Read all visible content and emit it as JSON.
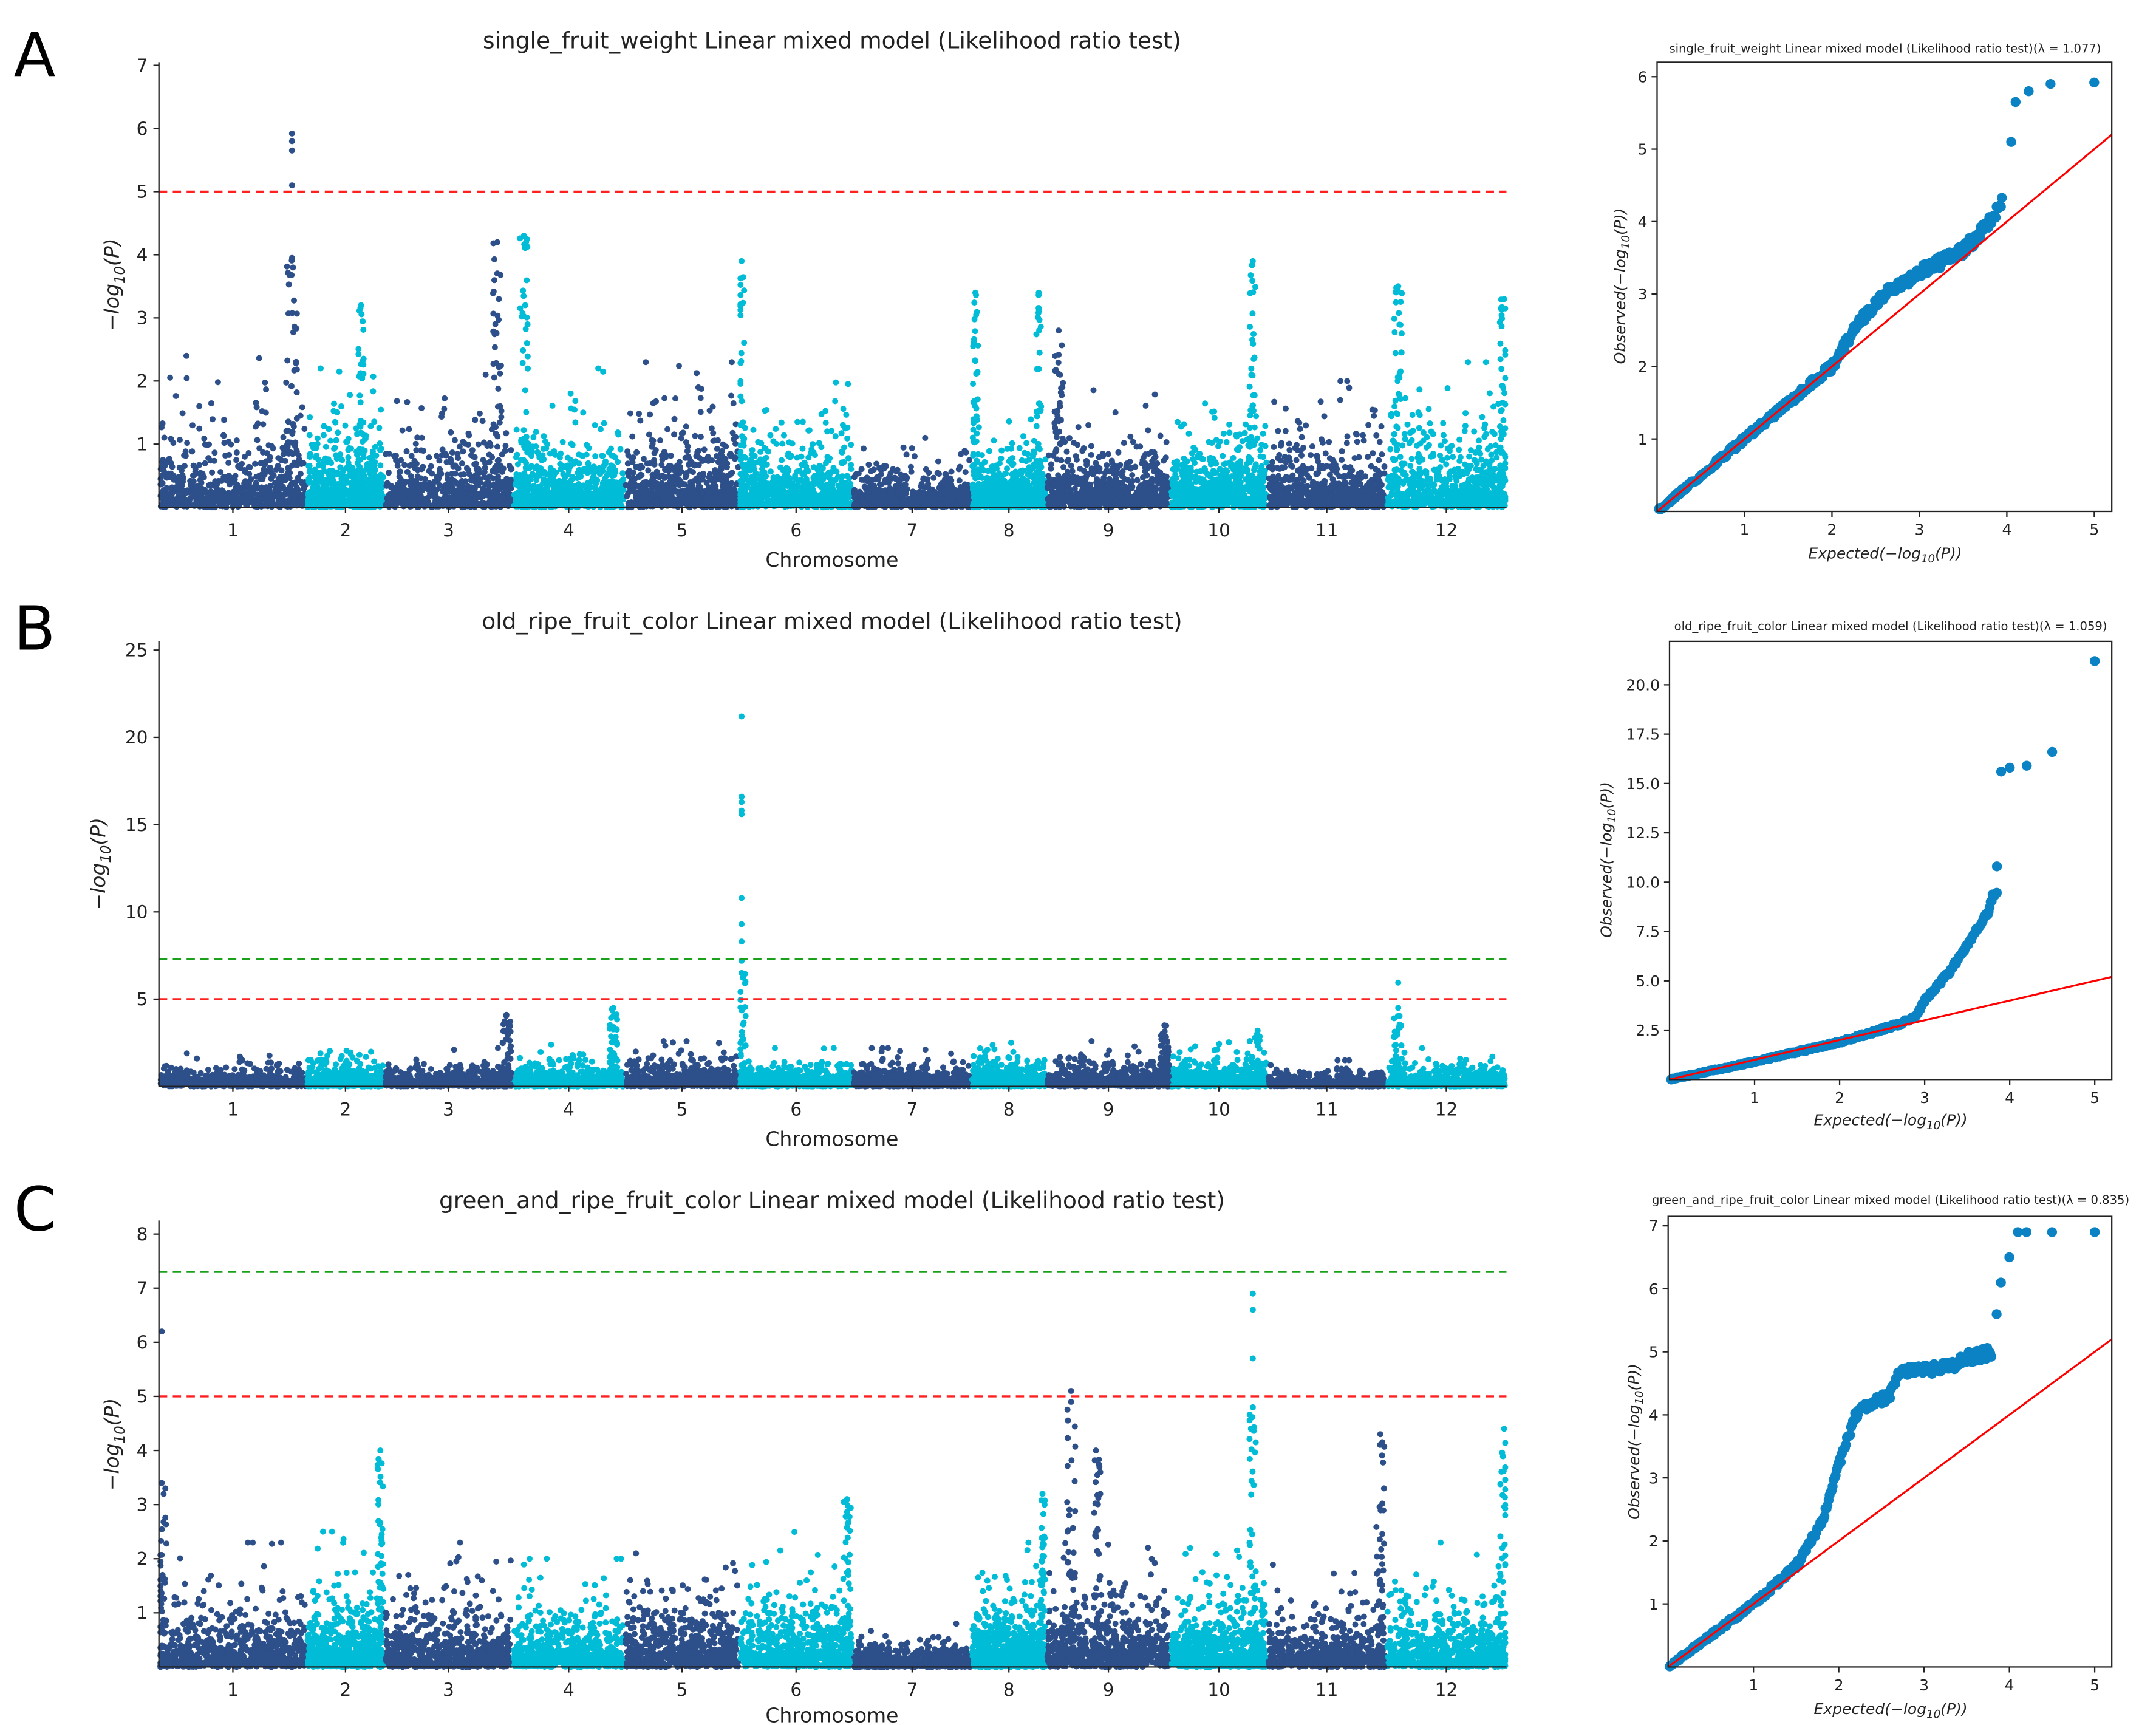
{
  "figure": {
    "panel_letters": [
      "A",
      "B",
      "C"
    ]
  },
  "colors": {
    "chrom_dark": "#2d4f8a",
    "chrom_light": "#00bcd6",
    "qq_point": "#0a82c4",
    "qq_line": "#ff0000",
    "threshold_suggestive": "#ff2020",
    "threshold_genomewide": "#1aa01a"
  },
  "chart_data": [
    {
      "type": "scatter",
      "kind": "manhattan",
      "title": "single_fruit_weight Linear mixed model (Likelihood ratio test)",
      "xlabel": "Chromosome",
      "ylabel": {
        "prefix": "−log",
        "sub": "10",
        "suffix": "(P)"
      },
      "ylim": [
        0,
        7.05
      ],
      "yticks": [
        1,
        2,
        3,
        4,
        5,
        6,
        7
      ],
      "xticklabels": [
        "1",
        "2",
        "3",
        "4",
        "5",
        "6",
        "7",
        "8",
        "9",
        "10",
        "11",
        "12"
      ],
      "thresholds": [
        {
          "value": 5,
          "style": "red-dashed"
        }
      ],
      "background_max": [
        2.4,
        2.2,
        2.1,
        2.2,
        2.3,
        2.3,
        1.1,
        1.5,
        1.9,
        2.2,
        2.0,
        2.3
      ],
      "peaks": [
        {
          "chr": 1,
          "pos": 0.9,
          "value": 3.95,
          "top_hits": [
            5.1,
            5.65,
            5.8,
            5.92
          ]
        },
        {
          "chr": 2,
          "pos": 0.7,
          "value": 3.2
        },
        {
          "chr": 3,
          "pos": 0.88,
          "value": 4.2
        },
        {
          "chr": 4,
          "pos": 0.1,
          "value": 4.3
        },
        {
          "chr": 6,
          "pos": 0.02,
          "value": 3.9
        },
        {
          "chr": 8,
          "pos": 0.05,
          "value": 3.4
        },
        {
          "chr": 8,
          "pos": 0.9,
          "value": 3.4
        },
        {
          "chr": 9,
          "pos": 0.1,
          "value": 2.8
        },
        {
          "chr": 10,
          "pos": 0.85,
          "value": 3.9
        },
        {
          "chr": 12,
          "pos": 0.1,
          "value": 3.5
        },
        {
          "chr": 12,
          "pos": 0.98,
          "value": 3.3
        }
      ]
    },
    {
      "type": "scatter",
      "kind": "manhattan",
      "title": "old_ripe_fruit_color Linear mixed model (Likelihood ratio test)",
      "xlabel": "Chromosome",
      "ylabel": {
        "prefix": "−log",
        "sub": "10",
        "suffix": "(P)"
      },
      "ylim": [
        0,
        25.5
      ],
      "yticks": [
        5,
        10,
        15,
        20,
        25
      ],
      "xticklabels": [
        "1",
        "2",
        "3",
        "4",
        "5",
        "6",
        "7",
        "8",
        "9",
        "10",
        "11",
        "12"
      ],
      "thresholds": [
        {
          "value": 5,
          "style": "red-dashed"
        },
        {
          "value": 7.3,
          "style": "green-dashed"
        }
      ],
      "background_max": [
        2.0,
        2.5,
        2.2,
        2.4,
        2.6,
        2.2,
        2.2,
        2.5,
        2.6,
        2.6,
        1.5,
        2.2
      ],
      "peaks": [
        {
          "chr": 6,
          "pos": 0.02,
          "value": 6.5,
          "top_hits": [
            7.2,
            8.3,
            9.3,
            10.8,
            15.6,
            15.8,
            16.3,
            16.6,
            21.2
          ]
        },
        {
          "chr": 12,
          "pos": 0.1,
          "value": 4.5,
          "top_hits": [
            5.95
          ]
        },
        {
          "chr": 4,
          "pos": 0.9,
          "value": 4.5
        },
        {
          "chr": 3,
          "pos": 0.95,
          "value": 4.1
        },
        {
          "chr": 9,
          "pos": 0.95,
          "value": 3.5
        },
        {
          "chr": 10,
          "pos": 0.9,
          "value": 3.2
        }
      ]
    },
    {
      "type": "scatter",
      "kind": "manhattan",
      "title": "green_and_ripe_fruit_color Linear mixed model (Likelihood ratio test)",
      "xlabel": "Chromosome",
      "ylabel": {
        "prefix": "−log",
        "sub": "10",
        "suffix": "(P)"
      },
      "ylim": [
        0,
        8.25
      ],
      "yticks": [
        1,
        2,
        3,
        4,
        5,
        6,
        7,
        8
      ],
      "xticklabels": [
        "1",
        "2",
        "3",
        "4",
        "5",
        "6",
        "7",
        "8",
        "9",
        "10",
        "11",
        "12"
      ],
      "thresholds": [
        {
          "value": 5,
          "style": "red-dashed"
        },
        {
          "value": 7.3,
          "style": "green-dashed"
        }
      ],
      "background_max": [
        2.3,
        2.5,
        2.3,
        2.0,
        2.4,
        2.5,
        0.8,
        2.3,
        2.5,
        2.4,
        1.9,
        2.3
      ],
      "peaks": [
        {
          "chr": 1,
          "pos": 0.02,
          "value": 3.4,
          "top_hits": [
            6.2
          ]
        },
        {
          "chr": 2,
          "pos": 0.95,
          "value": 4.0
        },
        {
          "chr": 6,
          "pos": 0.95,
          "value": 3.1
        },
        {
          "chr": 8,
          "pos": 0.95,
          "value": 3.2
        },
        {
          "chr": 9,
          "pos": 0.2,
          "value": 4.9,
          "top_hits": [
            5.1
          ]
        },
        {
          "chr": 9,
          "pos": 0.4,
          "value": 4.0
        },
        {
          "chr": 10,
          "pos": 0.85,
          "value": 4.8,
          "top_hits": [
            5.7,
            6.6,
            6.9
          ]
        },
        {
          "chr": 11,
          "pos": 0.95,
          "value": 4.3
        },
        {
          "chr": 12,
          "pos": 0.98,
          "value": 4.4
        }
      ]
    },
    {
      "type": "scatter",
      "kind": "qq",
      "title": "single_fruit_weight Linear mixed model (Likelihood ratio test)(λ = 1.077)",
      "lambda": 1.077,
      "xlabel": {
        "prefix": "Expected(−log",
        "sub": "10",
        "suffix": "(P))"
      },
      "ylabel": {
        "prefix": "Observed(−log",
        "sub": "10",
        "suffix": "(P))"
      },
      "xlim": [
        0,
        5.2
      ],
      "ylim": [
        0,
        6.2
      ],
      "xticks": [
        "1",
        "2",
        "3",
        "4",
        "5"
      ],
      "yticks": [
        "1",
        "2",
        "3",
        "4",
        "5",
        "6"
      ],
      "curve": [
        [
          0,
          0
        ],
        [
          1,
          1
        ],
        [
          2,
          2
        ],
        [
          2.3,
          2.6
        ],
        [
          2.6,
          3.0
        ],
        [
          3,
          3.3
        ],
        [
          3.5,
          3.6
        ],
        [
          3.75,
          3.9
        ],
        [
          3.9,
          4.2
        ],
        [
          3.95,
          4.3
        ]
      ],
      "top_points": [
        [
          4.05,
          5.1
        ],
        [
          4.1,
          5.65
        ],
        [
          4.25,
          5.8
        ],
        [
          4.5,
          5.9
        ],
        [
          5.0,
          5.92
        ]
      ]
    },
    {
      "type": "scatter",
      "kind": "qq",
      "title": "old_ripe_fruit_color Linear mixed model (Likelihood ratio test)(λ = 1.059)",
      "lambda": 1.059,
      "xlabel": {
        "prefix": "Expected(−log",
        "sub": "10",
        "suffix": "(P))"
      },
      "ylabel": {
        "prefix": "Observed(−log",
        "sub": "10",
        "suffix": "(P))"
      },
      "xlim": [
        0,
        5.2
      ],
      "ylim": [
        0,
        22.2
      ],
      "xticks": [
        "1",
        "2",
        "3",
        "4",
        "5"
      ],
      "yticks": [
        "2.5",
        "5.0",
        "7.5",
        "10.0",
        "12.5",
        "15.0",
        "17.5",
        "20.0"
      ],
      "curve": [
        [
          0,
          0
        ],
        [
          1,
          0.9
        ],
        [
          2,
          1.9
        ],
        [
          2.7,
          2.8
        ],
        [
          2.9,
          3.2
        ],
        [
          3.0,
          4.0
        ],
        [
          3.3,
          5.5
        ],
        [
          3.6,
          7.5
        ],
        [
          3.75,
          8.5
        ],
        [
          3.8,
          9.3
        ],
        [
          3.85,
          9.4
        ]
      ],
      "top_points": [
        [
          3.85,
          10.8
        ],
        [
          3.9,
          15.6
        ],
        [
          4.0,
          15.8
        ],
        [
          4.2,
          15.9
        ],
        [
          4.5,
          16.6
        ],
        [
          5.0,
          21.2
        ]
      ]
    },
    {
      "type": "scatter",
      "kind": "qq",
      "title": "green_and_ripe_fruit_color Linear mixed model (Likelihood ratio test)(λ = 0.835)",
      "lambda": 0.835,
      "xlabel": {
        "prefix": "Expected(−log",
        "sub": "10",
        "suffix": "(P))"
      },
      "ylabel": {
        "prefix": "Observed(−log",
        "sub": "10",
        "suffix": "(P))"
      },
      "xlim": [
        0,
        5.2
      ],
      "ylim": [
        0,
        7.15
      ],
      "xticks": [
        "1",
        "2",
        "3",
        "4",
        "5"
      ],
      "yticks": [
        "1",
        "2",
        "3",
        "4",
        "5",
        "6",
        "7"
      ],
      "curve": [
        [
          0,
          0
        ],
        [
          1,
          1
        ],
        [
          1.5,
          1.6
        ],
        [
          1.8,
          2.3
        ],
        [
          2.0,
          3.2
        ],
        [
          2.2,
          4.0
        ],
        [
          2.4,
          4.2
        ],
        [
          2.6,
          4.3
        ],
        [
          2.7,
          4.7
        ],
        [
          3.3,
          4.75
        ],
        [
          3.5,
          4.9
        ],
        [
          3.8,
          5.0
        ]
      ],
      "top_points": [
        [
          3.85,
          5.6
        ],
        [
          3.9,
          6.1
        ],
        [
          4.0,
          6.5
        ],
        [
          4.1,
          6.9
        ],
        [
          4.2,
          6.9
        ],
        [
          4.5,
          6.9
        ],
        [
          5.0,
          6.9
        ]
      ]
    }
  ]
}
